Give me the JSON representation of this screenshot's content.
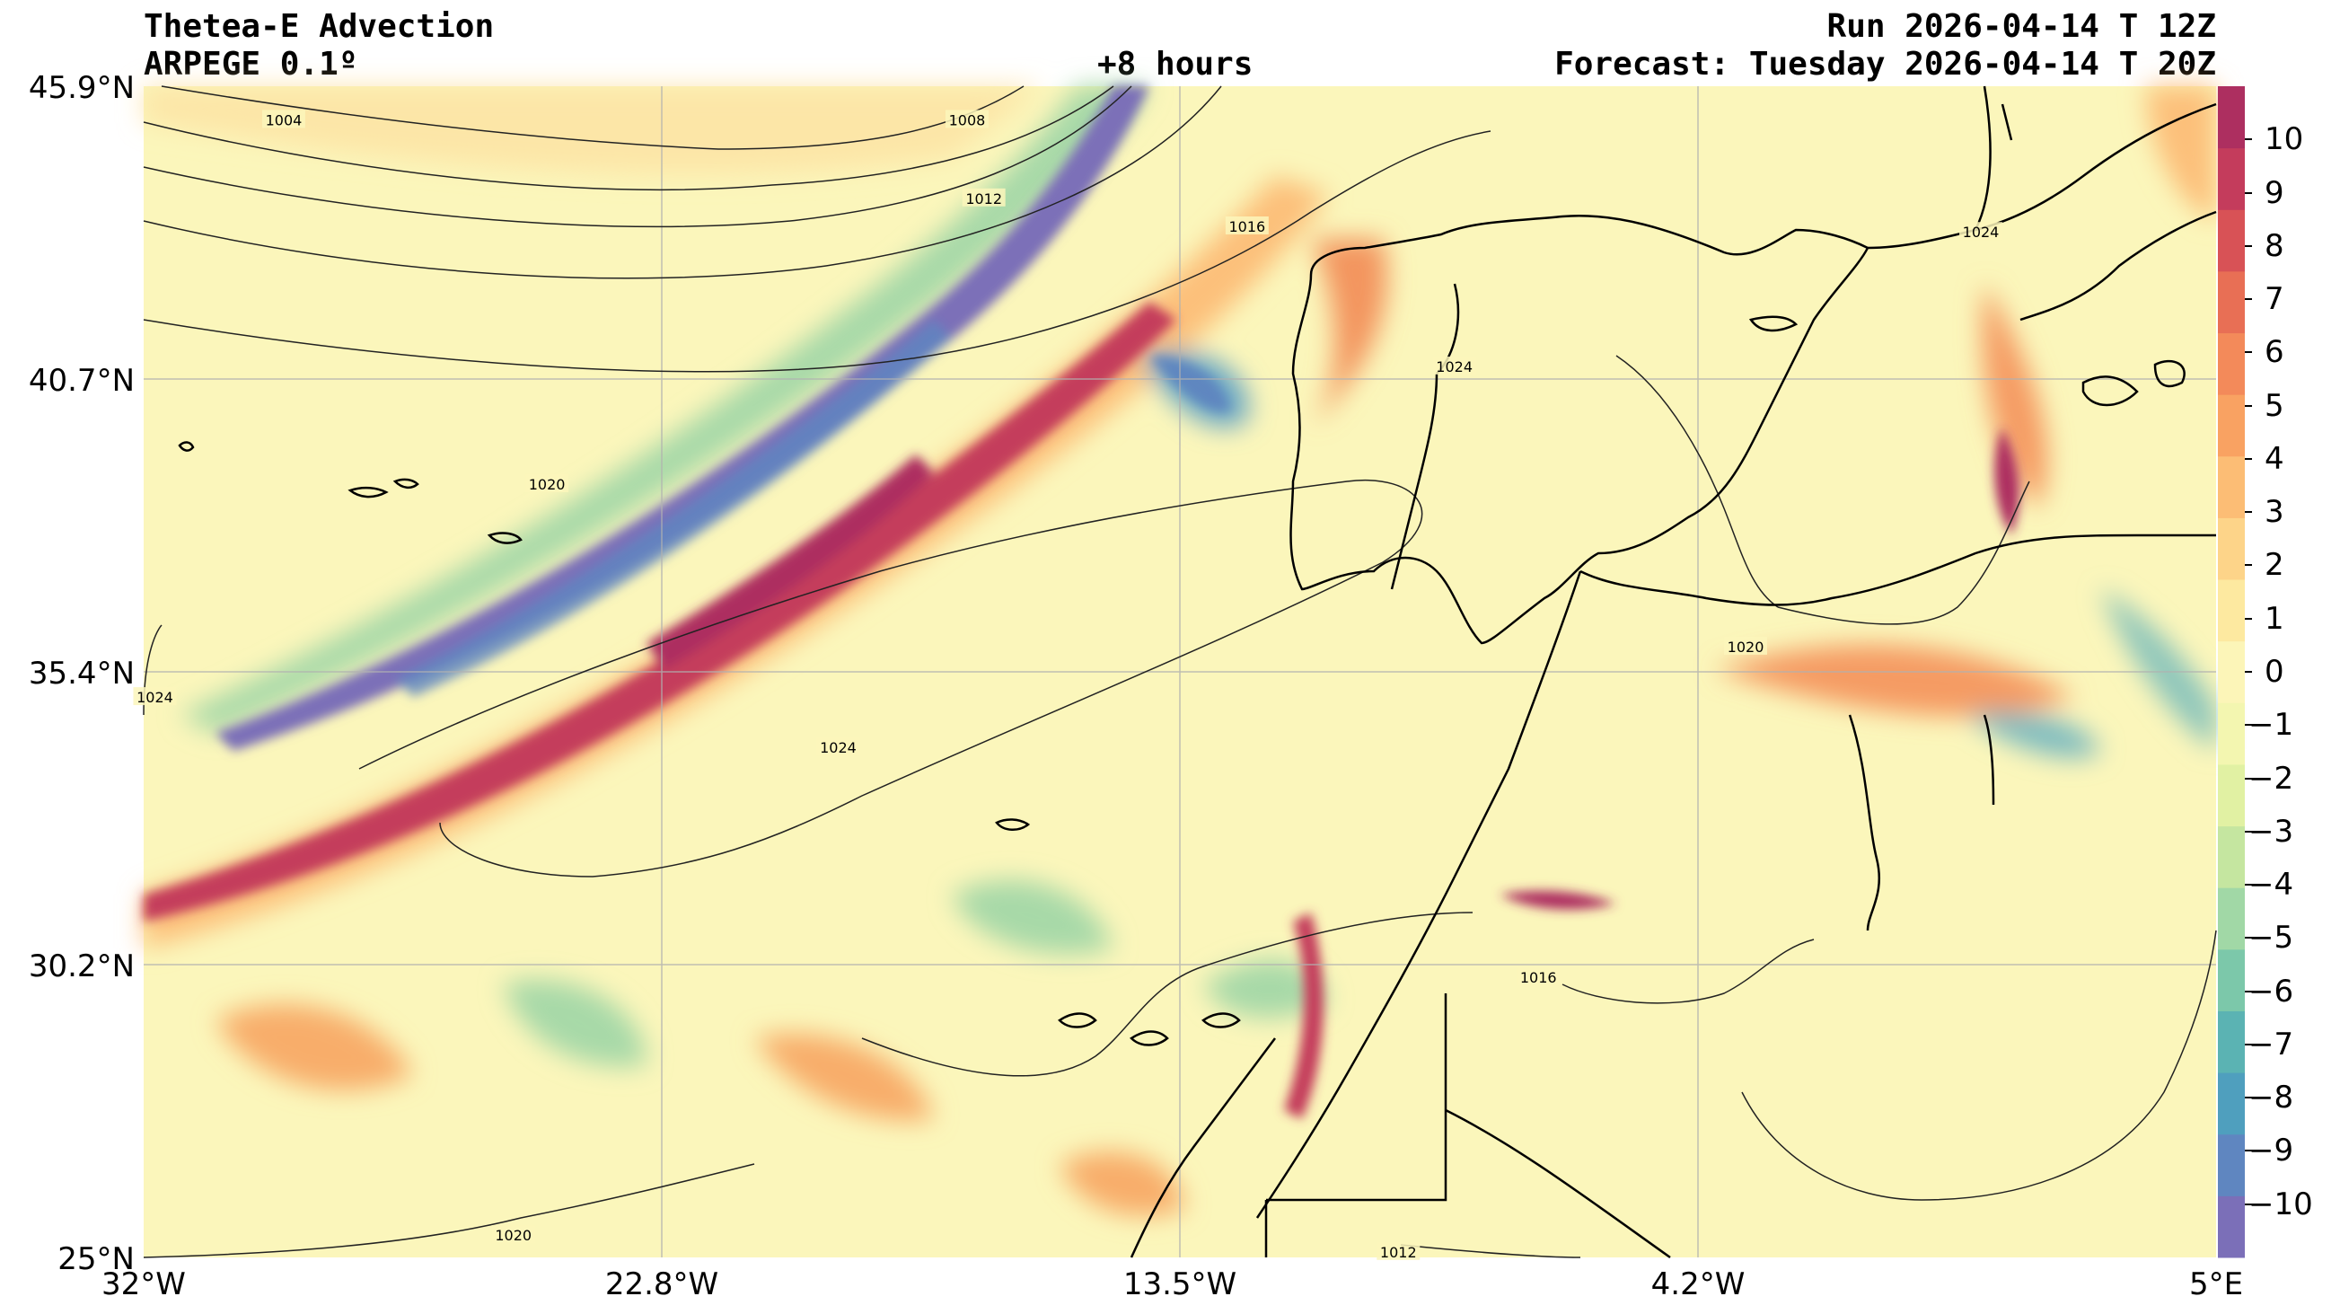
{
  "header": {
    "title": "Thetea-E Advection",
    "model": "ARPEGE 0.1º",
    "lead": "+8 hours",
    "run": "Run 2026-04-14 T 12Z",
    "forecast": "Forecast: Tuesday 2026-04-14 T 20Z"
  },
  "axes": {
    "lat_ticks": [
      "45.9°N",
      "40.7°N",
      "35.4°N",
      "30.2°N",
      "25°N"
    ],
    "lon_ticks": [
      "32°W",
      "22.8°W",
      "13.5°W",
      "4.2°W",
      "5°E"
    ],
    "lat_range": [
      25,
      45.9
    ],
    "lon_range": [
      -32,
      5
    ],
    "grid": true
  },
  "colorbar": {
    "ticks": [
      "10",
      "9",
      "8",
      "7",
      "6",
      "5",
      "4",
      "3",
      "2",
      "1",
      "0",
      "−1",
      "−2",
      "−3",
      "−4",
      "−5",
      "−6",
      "−7",
      "−8",
      "−9",
      "−10"
    ],
    "range": [
      -11,
      11
    ],
    "colors": [
      "#7b6fb8",
      "#5f86c0",
      "#4f9fbe",
      "#5bb3b3",
      "#7cc8aa",
      "#a1d8a6",
      "#c5e6a0",
      "#e1f1a3",
      "#f3f6b0",
      "#fcf5b8",
      "#fde9a0",
      "#fdd489",
      "#fcbd75",
      "#f9a262",
      "#f38a5a",
      "#e86f55",
      "#d85256",
      "#c43c5c",
      "#ad2f60"
    ]
  },
  "contours": {
    "labels": [
      {
        "text": "1004",
        "lon": -29.5,
        "lat": 45.3
      },
      {
        "text": "1008",
        "lon": -17.3,
        "lat": 45.3
      },
      {
        "text": "1012",
        "lon": -17.0,
        "lat": 43.9
      },
      {
        "text": "1016",
        "lon": -12.3,
        "lat": 43.4
      },
      {
        "text": "1020",
        "lon": -24.8,
        "lat": 38.8
      },
      {
        "text": "1024",
        "lon": -31.8,
        "lat": 35.0
      },
      {
        "text": "1024",
        "lon": -19.6,
        "lat": 34.1
      },
      {
        "text": "1024",
        "lon": -8.6,
        "lat": 40.9
      },
      {
        "text": "1024",
        "lon": 0.8,
        "lat": 43.3
      },
      {
        "text": "1020",
        "lon": -3.4,
        "lat": 35.9
      },
      {
        "text": "1016",
        "lon": -7.1,
        "lat": 30.0
      },
      {
        "text": "1020",
        "lon": -25.4,
        "lat": 25.4
      },
      {
        "text": "1012",
        "lon": -9.6,
        "lat": 25.1
      }
    ]
  }
}
